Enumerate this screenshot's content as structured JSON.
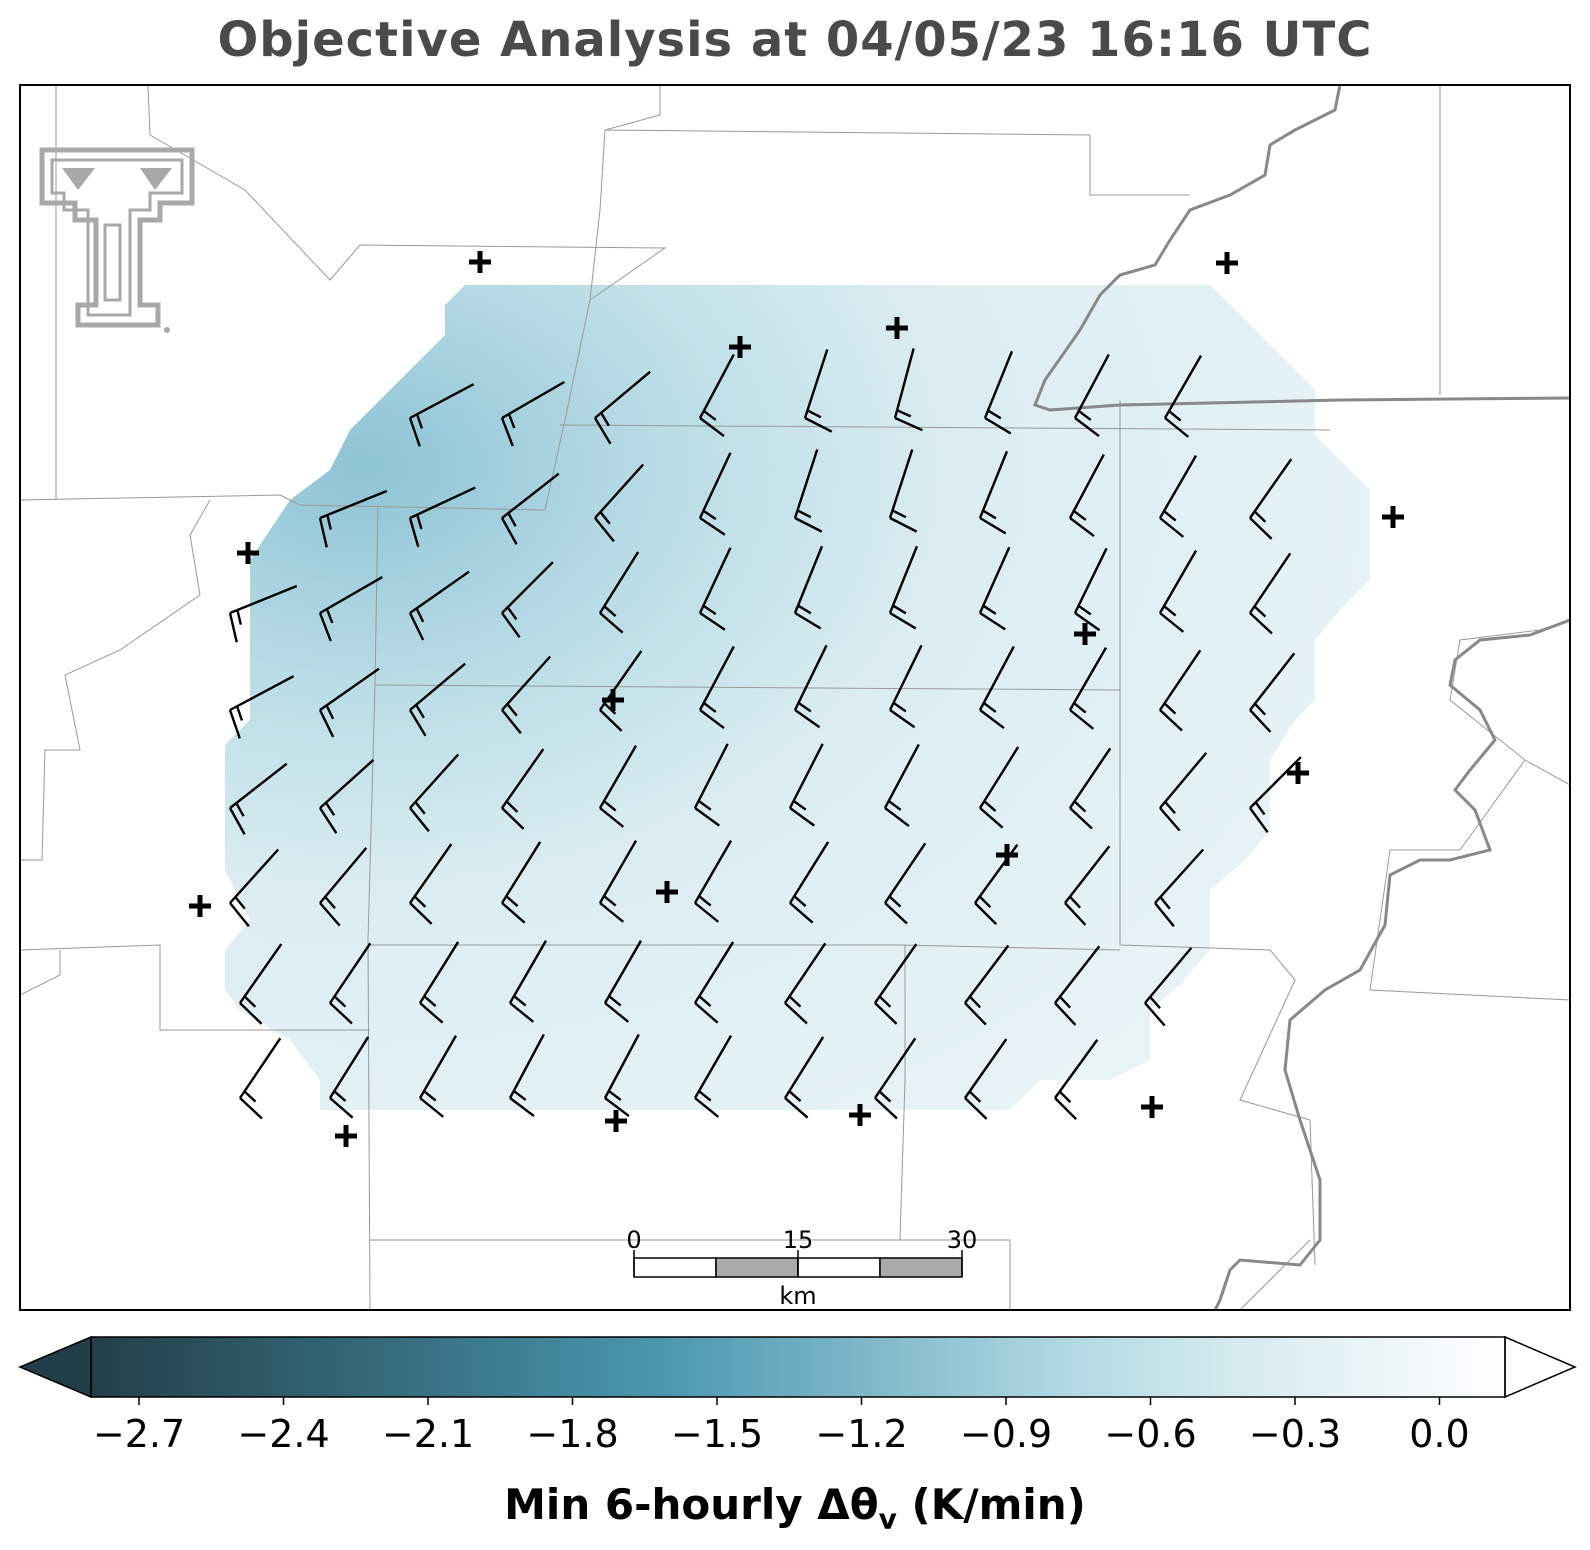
{
  "title": "Objective Analysis at 04/05/23 16:16 UTC",
  "logo": {
    "name": "texas-tech-double-t-logo",
    "color": "#a8a8a8"
  },
  "map": {
    "field": "min-6-hourly-delta-theta-v",
    "field_colormap": {
      "low": "#1f3f4a",
      "mid": "#4a9cb4",
      "high": "#ffffff"
    },
    "station_marker": "plus-icon",
    "wind_symbol": "wind-barb",
    "boundary_color": "#8a8a8a",
    "river_color": "#888888"
  },
  "scale_bar": {
    "unit": "km",
    "ticks": [
      "0",
      "15",
      "30"
    ]
  },
  "colorbar": {
    "label_main": "Min 6-hourly Δθ",
    "label_sub": "v",
    "label_unit": " (K/min)",
    "ticks": [
      "−2.7",
      "−2.4",
      "−2.1",
      "−1.8",
      "−1.5",
      "−1.2",
      "−0.9",
      "−0.6",
      "−0.3",
      "0.0"
    ],
    "extend": "both"
  }
}
